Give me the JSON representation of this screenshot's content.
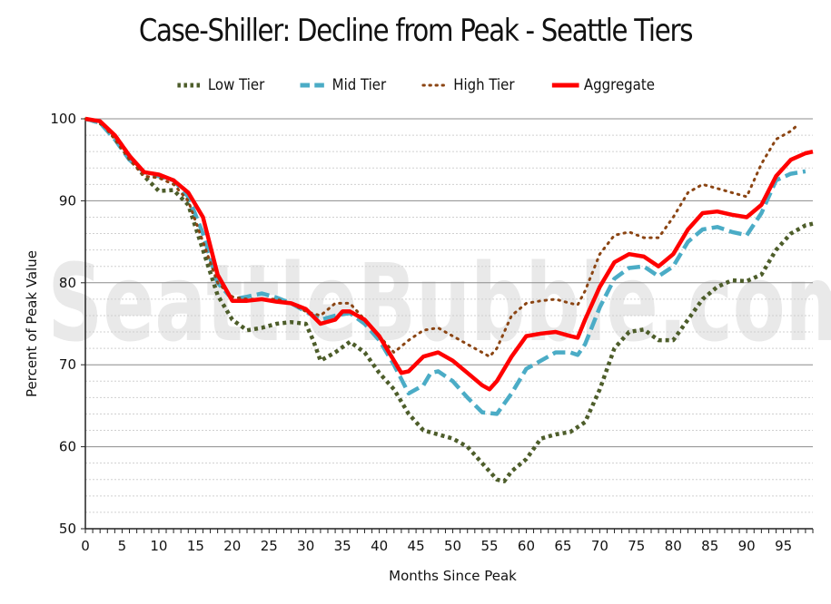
{
  "chart_data": {
    "type": "line",
    "title": "Case-Shiller: Decline from Peak - Seattle Tiers",
    "xlabel": "Months Since Peak",
    "ylabel": "Percent of Peak Value",
    "xlim": [
      0,
      99
    ],
    "ylim": [
      50,
      100
    ],
    "x_ticks": [
      0,
      5,
      10,
      15,
      20,
      25,
      30,
      35,
      40,
      45,
      50,
      55,
      60,
      65,
      70,
      75,
      80,
      85,
      90,
      95
    ],
    "y_ticks": [
      50,
      60,
      70,
      80,
      90,
      100
    ],
    "legend_position": "top-center",
    "grid": "horizontal",
    "series": [
      {
        "name": "Low Tier",
        "color": "#4d5d2a",
        "style": "dotted",
        "points": [
          [
            0,
            100
          ],
          [
            2,
            99.5
          ],
          [
            4,
            98
          ],
          [
            6,
            95.5
          ],
          [
            8,
            93
          ],
          [
            10,
            91.2
          ],
          [
            12,
            91.3
          ],
          [
            14,
            89.5
          ],
          [
            16,
            84
          ],
          [
            18,
            78.5
          ],
          [
            20,
            75.5
          ],
          [
            22,
            74.2
          ],
          [
            24,
            74.5
          ],
          [
            26,
            75
          ],
          [
            28,
            75.2
          ],
          [
            30,
            75
          ],
          [
            31,
            73
          ],
          [
            32,
            70.5
          ],
          [
            34,
            71.5
          ],
          [
            36,
            72.8
          ],
          [
            38,
            71.5
          ],
          [
            40,
            69
          ],
          [
            42,
            67
          ],
          [
            44,
            64
          ],
          [
            46,
            62
          ],
          [
            48,
            61.5
          ],
          [
            50,
            61
          ],
          [
            52,
            60
          ],
          [
            54,
            58
          ],
          [
            56,
            56
          ],
          [
            57,
            55.8
          ],
          [
            58,
            57
          ],
          [
            60,
            58.5
          ],
          [
            62,
            61
          ],
          [
            64,
            61.5
          ],
          [
            66,
            61.8
          ],
          [
            68,
            63
          ],
          [
            70,
            67
          ],
          [
            72,
            72
          ],
          [
            74,
            74
          ],
          [
            76,
            74.3
          ],
          [
            78,
            73
          ],
          [
            80,
            73
          ],
          [
            82,
            75.5
          ],
          [
            84,
            78
          ],
          [
            86,
            79.5
          ],
          [
            88,
            80.3
          ],
          [
            90,
            80.2
          ],
          [
            92,
            81
          ],
          [
            94,
            84
          ],
          [
            96,
            86
          ],
          [
            98,
            87
          ],
          [
            99,
            87.2
          ]
        ]
      },
      {
        "name": "Mid Tier",
        "color": "#4bacc6",
        "style": "dashed",
        "points": [
          [
            0,
            100
          ],
          [
            2,
            99.5
          ],
          [
            4,
            97.5
          ],
          [
            6,
            95
          ],
          [
            8,
            93.5
          ],
          [
            10,
            93
          ],
          [
            12,
            92.5
          ],
          [
            14,
            90.5
          ],
          [
            16,
            86
          ],
          [
            18,
            80
          ],
          [
            20,
            78
          ],
          [
            22,
            78.3
          ],
          [
            24,
            78.7
          ],
          [
            26,
            78.2
          ],
          [
            28,
            77.5
          ],
          [
            30,
            76.5
          ],
          [
            32,
            75.5
          ],
          [
            34,
            76
          ],
          [
            36,
            76.3
          ],
          [
            38,
            75
          ],
          [
            40,
            73
          ],
          [
            42,
            70
          ],
          [
            44,
            66.5
          ],
          [
            46,
            67.5
          ],
          [
            47,
            69
          ],
          [
            48,
            69.2
          ],
          [
            50,
            68
          ],
          [
            52,
            66
          ],
          [
            54,
            64.2
          ],
          [
            56,
            64
          ],
          [
            58,
            66.5
          ],
          [
            60,
            69.5
          ],
          [
            62,
            70.5
          ],
          [
            64,
            71.5
          ],
          [
            66,
            71.5
          ],
          [
            67,
            71.2
          ],
          [
            68,
            72.5
          ],
          [
            70,
            77
          ],
          [
            72,
            80.5
          ],
          [
            74,
            81.8
          ],
          [
            76,
            82
          ],
          [
            78,
            80.8
          ],
          [
            80,
            82
          ],
          [
            82,
            85
          ],
          [
            84,
            86.5
          ],
          [
            86,
            86.8
          ],
          [
            88,
            86.2
          ],
          [
            90,
            85.8
          ],
          [
            92,
            88.5
          ],
          [
            94,
            92.5
          ],
          [
            96,
            93.3
          ],
          [
            98,
            93.6
          ]
        ]
      },
      {
        "name": "High Tier",
        "color": "#8b4513",
        "style": "dotted",
        "points": [
          [
            0,
            100
          ],
          [
            2,
            99.7
          ],
          [
            4,
            97.5
          ],
          [
            6,
            95
          ],
          [
            8,
            93
          ],
          [
            10,
            92.8
          ],
          [
            12,
            92
          ],
          [
            14,
            90
          ],
          [
            16,
            85
          ],
          [
            18,
            80
          ],
          [
            20,
            78.3
          ],
          [
            22,
            78
          ],
          [
            24,
            78
          ],
          [
            26,
            78
          ],
          [
            28,
            77.5
          ],
          [
            30,
            76.5
          ],
          [
            32,
            76
          ],
          [
            34,
            77.5
          ],
          [
            36,
            77.5
          ],
          [
            38,
            75.5
          ],
          [
            40,
            73.5
          ],
          [
            42,
            71.5
          ],
          [
            44,
            73
          ],
          [
            46,
            74.2
          ],
          [
            48,
            74.5
          ],
          [
            50,
            73.5
          ],
          [
            52,
            72.5
          ],
          [
            54,
            71.5
          ],
          [
            55,
            71
          ],
          [
            56,
            72
          ],
          [
            58,
            76
          ],
          [
            60,
            77.5
          ],
          [
            62,
            77.8
          ],
          [
            64,
            78
          ],
          [
            66,
            77.5
          ],
          [
            67,
            77.3
          ],
          [
            68,
            79
          ],
          [
            70,
            83.5
          ],
          [
            72,
            85.8
          ],
          [
            74,
            86.2
          ],
          [
            76,
            85.5
          ],
          [
            78,
            85.5
          ],
          [
            80,
            88
          ],
          [
            82,
            91
          ],
          [
            84,
            92
          ],
          [
            86,
            91.5
          ],
          [
            88,
            91
          ],
          [
            90,
            90.5
          ],
          [
            92,
            94.5
          ],
          [
            94,
            97.5
          ],
          [
            96,
            98.5
          ],
          [
            97,
            99.3
          ]
        ]
      },
      {
        "name": "Aggregate",
        "color": "#ff0000",
        "style": "solid",
        "points": [
          [
            0,
            100
          ],
          [
            2,
            99.7
          ],
          [
            4,
            98
          ],
          [
            6,
            95.5
          ],
          [
            8,
            93.5
          ],
          [
            10,
            93.2
          ],
          [
            12,
            92.5
          ],
          [
            14,
            91
          ],
          [
            16,
            88
          ],
          [
            18,
            81
          ],
          [
            20,
            77.8
          ],
          [
            22,
            77.8
          ],
          [
            24,
            78
          ],
          [
            26,
            77.7
          ],
          [
            28,
            77.5
          ],
          [
            30,
            76.8
          ],
          [
            32,
            75
          ],
          [
            34,
            75.5
          ],
          [
            35,
            76.5
          ],
          [
            36,
            76.5
          ],
          [
            38,
            75.5
          ],
          [
            40,
            73.5
          ],
          [
            42,
            70.5
          ],
          [
            43,
            69
          ],
          [
            44,
            69.2
          ],
          [
            46,
            71
          ],
          [
            48,
            71.5
          ],
          [
            50,
            70.5
          ],
          [
            52,
            69
          ],
          [
            54,
            67.5
          ],
          [
            55,
            67
          ],
          [
            56,
            68
          ],
          [
            58,
            71
          ],
          [
            60,
            73.5
          ],
          [
            62,
            73.8
          ],
          [
            64,
            74
          ],
          [
            66,
            73.5
          ],
          [
            67,
            73.3
          ],
          [
            68,
            75.5
          ],
          [
            70,
            79.5
          ],
          [
            72,
            82.5
          ],
          [
            74,
            83.5
          ],
          [
            76,
            83.2
          ],
          [
            78,
            82
          ],
          [
            80,
            83.5
          ],
          [
            82,
            86.5
          ],
          [
            84,
            88.5
          ],
          [
            86,
            88.7
          ],
          [
            88,
            88.3
          ],
          [
            90,
            88
          ],
          [
            92,
            89.5
          ],
          [
            94,
            93
          ],
          [
            96,
            95
          ],
          [
            98,
            95.8
          ],
          [
            99,
            96
          ]
        ]
      }
    ]
  },
  "watermark": "SeattleBubble.com"
}
